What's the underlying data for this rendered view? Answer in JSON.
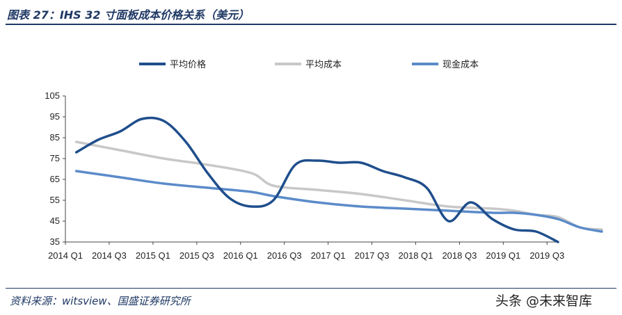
{
  "figure": {
    "title": "图表 27：IHS 32 寸面板成本价格关系（美元）",
    "source": "资料来源：witsview、国盛证券研究所",
    "watermark": "头条 @未来智库"
  },
  "colors": {
    "price": "#1f4e8c",
    "avg_cost": "#c8c8c8",
    "cash_cost": "#5b8bc9",
    "rule": "#1f3864"
  },
  "chart_data": {
    "type": "line",
    "title": "",
    "xlabel": "",
    "ylabel": "",
    "ylim": [
      35,
      105
    ],
    "yticks": [
      35,
      45,
      55,
      65,
      75,
      85,
      95,
      105
    ],
    "grid": false,
    "legend": "top",
    "x_tick_labels": [
      "2014 Q1",
      "2014 Q3",
      "2015 Q1",
      "2015 Q3",
      "2016 Q1",
      "2016 Q3",
      "2017 Q1",
      "2017 Q3",
      "2018 Q1",
      "2018 Q3",
      "2019 Q1",
      "2019 Q3"
    ],
    "x_tick_positions": [
      0,
      4,
      8,
      12,
      16,
      20,
      24,
      28,
      32,
      36,
      40,
      44
    ],
    "x_range": [
      0,
      45
    ],
    "series": [
      {
        "name": "平均价格",
        "color": "#1f4e8c",
        "points": [
          [
            1,
            78
          ],
          [
            3,
            84
          ],
          [
            5,
            88
          ],
          [
            7,
            94
          ],
          [
            9,
            93
          ],
          [
            11,
            83
          ],
          [
            13,
            68
          ],
          [
            15,
            56
          ],
          [
            17,
            52
          ],
          [
            19,
            55
          ],
          [
            21,
            72
          ],
          [
            23,
            74
          ],
          [
            25,
            73
          ],
          [
            27,
            73
          ],
          [
            29,
            69
          ],
          [
            31,
            66
          ],
          [
            33,
            61
          ],
          [
            35,
            45
          ],
          [
            37,
            54
          ],
          [
            39,
            46
          ],
          [
            41,
            41
          ],
          [
            43,
            40
          ],
          [
            45,
            35
          ]
        ]
      },
      {
        "name": "平均成本",
        "color": "#c8c8c8",
        "points": [
          [
            1,
            83
          ],
          [
            5,
            79
          ],
          [
            9,
            75
          ],
          [
            13,
            72
          ],
          [
            17,
            68
          ],
          [
            19,
            62
          ],
          [
            23,
            60
          ],
          [
            27,
            58
          ],
          [
            31,
            55
          ],
          [
            35,
            52
          ],
          [
            39,
            51
          ],
          [
            41,
            50
          ],
          [
            43,
            48
          ],
          [
            45,
            47
          ],
          [
            47,
            42
          ],
          [
            49,
            41
          ]
        ]
      },
      {
        "name": "现金成本",
        "color": "#5b8bc9",
        "points": [
          [
            1,
            69
          ],
          [
            5,
            66
          ],
          [
            9,
            63
          ],
          [
            13,
            61
          ],
          [
            17,
            59
          ],
          [
            19,
            57
          ],
          [
            23,
            54
          ],
          [
            27,
            52
          ],
          [
            31,
            51
          ],
          [
            35,
            50
          ],
          [
            39,
            49
          ],
          [
            41,
            49
          ],
          [
            43,
            48
          ],
          [
            45,
            46
          ],
          [
            47,
            42
          ],
          [
            49,
            40
          ]
        ]
      }
    ]
  }
}
